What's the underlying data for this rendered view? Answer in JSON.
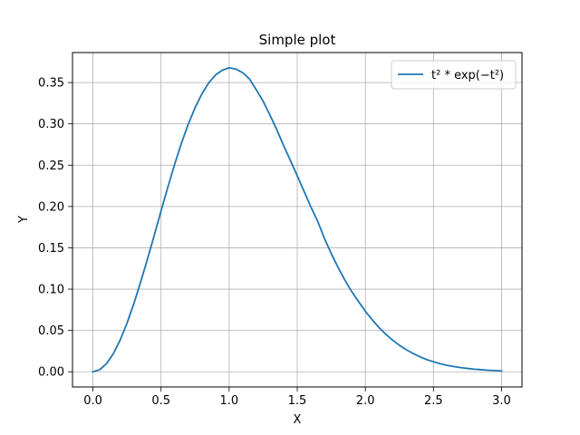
{
  "chart_data": {
    "type": "line",
    "title": "Simple plot",
    "xlabel": "X",
    "ylabel": "Y",
    "xlim": [
      -0.15,
      3.15
    ],
    "ylim": [
      -0.0184,
      0.3863
    ],
    "xticks": [
      0.0,
      0.5,
      1.0,
      1.5,
      2.0,
      2.5,
      3.0
    ],
    "xtick_labels": [
      "0.0",
      "0.5",
      "1.0",
      "1.5",
      "2.0",
      "2.5",
      "3.0"
    ],
    "yticks": [
      0.0,
      0.05,
      0.1,
      0.15,
      0.2,
      0.25,
      0.3,
      0.35
    ],
    "ytick_labels": [
      "0.00",
      "0.05",
      "0.10",
      "0.15",
      "0.20",
      "0.25",
      "0.30",
      "0.35"
    ],
    "grid": true,
    "legend_position": "top-right",
    "series": [
      {
        "name": "t² * exp(−t²)",
        "color": "#1f77b4",
        "x": [
          0.0,
          0.05,
          0.1,
          0.15,
          0.2,
          0.25,
          0.3,
          0.35,
          0.4,
          0.45,
          0.5,
          0.55,
          0.6,
          0.65,
          0.7,
          0.75,
          0.8,
          0.85,
          0.9,
          0.95,
          1.0,
          1.05,
          1.1,
          1.15,
          1.2,
          1.25,
          1.3,
          1.35,
          1.4,
          1.45,
          1.5,
          1.55,
          1.6,
          1.65,
          1.7,
          1.75,
          1.8,
          1.85,
          1.9,
          1.95,
          2.0,
          2.05,
          2.1,
          2.15,
          2.2,
          2.25,
          2.3,
          2.35,
          2.4,
          2.45,
          2.5,
          2.55,
          2.6,
          2.65,
          2.7,
          2.75,
          2.8,
          2.85,
          2.9,
          2.95,
          3.0
        ],
        "y": [
          0.0,
          0.0025,
          0.0099,
          0.0219,
          0.0384,
          0.0587,
          0.0823,
          0.1084,
          0.1363,
          0.165,
          0.1947,
          0.2235,
          0.2511,
          0.2767,
          0.2997,
          0.3196,
          0.3363,
          0.3496,
          0.3592,
          0.365,
          0.3679,
          0.3662,
          0.3619,
          0.3542,
          0.3411,
          0.3272,
          0.3105,
          0.2929,
          0.2736,
          0.2557,
          0.2371,
          0.2184,
          0.1994,
          0.1822,
          0.1612,
          0.1429,
          0.1262,
          0.1108,
          0.097,
          0.0849,
          0.0733,
          0.0629,
          0.0536,
          0.0454,
          0.0383,
          0.0321,
          0.0267,
          0.0222,
          0.0181,
          0.0148,
          0.0121,
          0.0097,
          0.0078,
          0.0063,
          0.005,
          0.004,
          0.0031,
          0.0025,
          0.0019,
          0.0015,
          0.0011
        ]
      }
    ]
  }
}
